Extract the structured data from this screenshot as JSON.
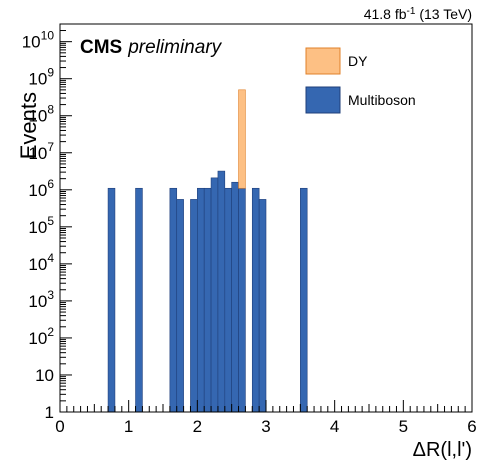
{
  "chart_data": {
    "type": "bar",
    "stacked": true,
    "yscale": "log",
    "xlabel": "ΔR(l,l')",
    "ylabel": "Events",
    "xlim": [
      0,
      6
    ],
    "ylim": [
      1,
      30000000000
    ],
    "bin_width": 0.1,
    "lumi_label": "41.8 fb",
    "lumi_sup": "-1",
    "lumi_suffix": " (13 TeV)",
    "cms_label": "CMS",
    "cms_sub": "preliminary",
    "x_ticks": [
      {
        "value": 0,
        "label": "0"
      },
      {
        "value": 1,
        "label": "1"
      },
      {
        "value": 2,
        "label": "2"
      },
      {
        "value": 3,
        "label": "3"
      },
      {
        "value": 4,
        "label": "4"
      },
      {
        "value": 5,
        "label": "5"
      },
      {
        "value": 6,
        "label": "6"
      }
    ],
    "y_ticks": [
      {
        "value": 1,
        "base": "1",
        "exp": ""
      },
      {
        "value": 10,
        "base": "10",
        "exp": ""
      },
      {
        "value": 100,
        "base": "10",
        "exp": "2"
      },
      {
        "value": 1000,
        "base": "10",
        "exp": "3"
      },
      {
        "value": 10000,
        "base": "10",
        "exp": "4"
      },
      {
        "value": 100000,
        "base": "10",
        "exp": "5"
      },
      {
        "value": 1000000,
        "base": "10",
        "exp": "6"
      },
      {
        "value": 10000000,
        "base": "10",
        "exp": "7"
      },
      {
        "value": 100000000,
        "base": "10",
        "exp": "8"
      },
      {
        "value": 1000000000,
        "base": "10",
        "exp": "9"
      },
      {
        "value": 10000000000,
        "base": "10",
        "exp": "10"
      }
    ],
    "series": [
      {
        "name": "Multiboson",
        "color": "#3567b1",
        "edge": "#1f3f7a",
        "bins": [
          {
            "x0": 0.7,
            "x1": 0.8,
            "value": 1100000
          },
          {
            "x0": 1.1,
            "x1": 1.2,
            "value": 1100000
          },
          {
            "x0": 1.6,
            "x1": 1.7,
            "value": 1100000
          },
          {
            "x0": 1.7,
            "x1": 1.8,
            "value": 550000
          },
          {
            "x0": 1.9,
            "x1": 2.0,
            "value": 550000
          },
          {
            "x0": 2.0,
            "x1": 2.1,
            "value": 1100000
          },
          {
            "x0": 2.1,
            "x1": 2.2,
            "value": 1100000
          },
          {
            "x0": 2.2,
            "x1": 2.3,
            "value": 2100000
          },
          {
            "x0": 2.3,
            "x1": 2.4,
            "value": 3200000
          },
          {
            "x0": 2.4,
            "x1": 2.5,
            "value": 1100000
          },
          {
            "x0": 2.5,
            "x1": 2.6,
            "value": 1600000
          },
          {
            "x0": 2.6,
            "x1": 2.7,
            "value": 1100000
          },
          {
            "x0": 2.8,
            "x1": 2.9,
            "value": 1100000
          },
          {
            "x0": 2.9,
            "x1": 3.0,
            "value": 550000
          },
          {
            "x0": 3.5,
            "x1": 3.6,
            "value": 1100000
          }
        ]
      },
      {
        "name": "DY",
        "color": "#fdc084",
        "edge": "#e0802a",
        "bins": [
          {
            "x0": 2.6,
            "x1": 2.7,
            "value": 500000000
          }
        ]
      }
    ],
    "legend": [
      {
        "label": "DY",
        "color": "#fdc084",
        "edge": "#e0802a"
      },
      {
        "label": "Multiboson",
        "color": "#3567b1",
        "edge": "#1f3f7a"
      }
    ],
    "legend_position": "top-right"
  }
}
